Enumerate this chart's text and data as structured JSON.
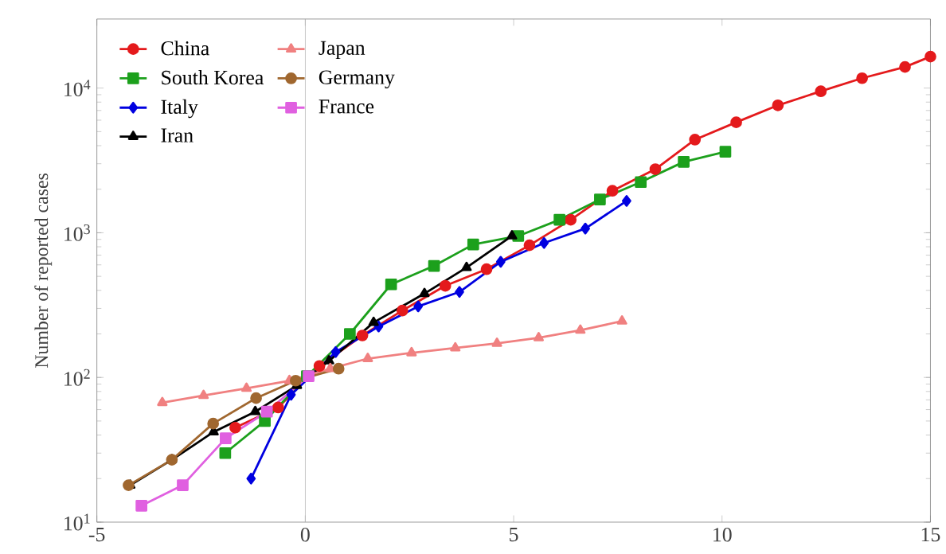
{
  "chart_data": {
    "type": "line",
    "ylabel": "Number of reported cases",
    "log": "y",
    "legend": "top left",
    "grid": false,
    "xlim": [
      -5,
      15
    ],
    "xticks": [
      -5,
      0,
      5,
      10,
      15
    ],
    "ylim": [
      10,
      30000
    ],
    "yticks": [
      {
        "value": 10,
        "label": "10$^{1}$"
      },
      {
        "value": 100,
        "label": "10$^{2}$"
      },
      {
        "value": 1000,
        "label": "10$^{3}$"
      },
      {
        "value": 10000,
        "label": "10$^{4}$"
      }
    ],
    "ref_lines": [
      {
        "axis": "x",
        "value": 0,
        "color": "#b0b0b0"
      }
    ],
    "series": [
      {
        "name": "China",
        "color": "#e41a1c",
        "marker": "circle",
        "x": [
          -1.68,
          -0.65,
          0.34,
          1.37,
          2.33,
          3.36,
          4.35,
          5.38,
          6.37,
          7.37,
          8.4,
          9.35,
          10.34,
          11.34,
          12.37,
          13.36,
          14.39,
          15
        ],
        "values": [
          45,
          62,
          120,
          195,
          290,
          430,
          560,
          820,
          1230,
          1950,
          2750,
          4400,
          5800,
          7600,
          9500,
          11700,
          14000,
          16500
        ]
      },
      {
        "name": "South Korea",
        "color": "#1ca01c",
        "marker": "square",
        "x": [
          -1.92,
          -0.97,
          0.04,
          1.07,
          2.06,
          3.09,
          4.03,
          5.11,
          6.1,
          7.07,
          8.05,
          9.08,
          10.08
        ],
        "values": [
          30,
          50,
          102,
          200,
          440,
          590,
          830,
          950,
          1230,
          1700,
          2240,
          3090,
          3630
        ]
      },
      {
        "name": "Italy",
        "color": "#0000e0",
        "marker": "diamond",
        "x": [
          -1.3,
          -0.34,
          0.73,
          1.76,
          2.71,
          3.7,
          4.69,
          5.73,
          6.72,
          7.71
        ],
        "values": [
          20,
          76,
          150,
          225,
          310,
          390,
          630,
          850,
          1070,
          1660
        ]
      },
      {
        "name": "Iran",
        "color": "#000000",
        "marker": "triangle",
        "x": [
          -4.2,
          -3.2,
          -2.2,
          -1.2,
          -0.2,
          0.57,
          1.64,
          2.86,
          3.87,
          4.96
        ],
        "values": [
          18,
          27,
          42,
          58,
          88,
          130,
          240,
          380,
          575,
          950
        ]
      },
      {
        "name": "Japan",
        "color": "#f08080",
        "marker": "triangle",
        "x": [
          -3.43,
          -2.44,
          -1.41,
          -0.38,
          0.6,
          1.5,
          2.55,
          3.6,
          4.6,
          5.6,
          6.6,
          7.6
        ],
        "values": [
          67,
          75,
          84,
          95,
          115,
          135,
          148,
          160,
          172,
          188,
          212,
          245
        ]
      },
      {
        "name": "Germany",
        "color": "#a0672f",
        "marker": "circle",
        "x": [
          -4.24,
          -3.2,
          -2.21,
          -1.18,
          -0.23,
          0.8
        ],
        "values": [
          18,
          27,
          48,
          72,
          95,
          115
        ]
      },
      {
        "name": "France",
        "color": "#e060e0",
        "marker": "square",
        "x": [
          -3.93,
          -2.94,
          -1.91,
          -0.92,
          0.08
        ],
        "values": [
          13,
          18,
          38,
          58,
          102
        ]
      }
    ]
  }
}
